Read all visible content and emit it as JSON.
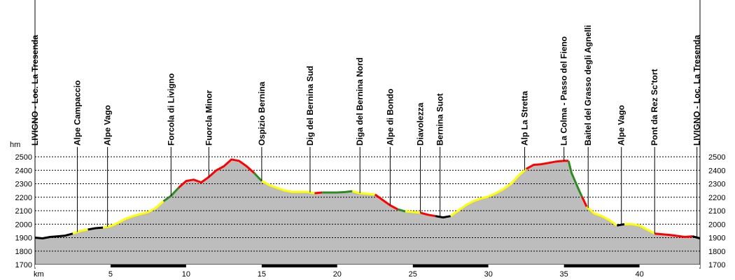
{
  "chart_data": {
    "type": "area",
    "title": "",
    "xlabel": "km",
    "ylabel": "hm",
    "xlim": [
      0,
      44
    ],
    "ylim": [
      1700,
      2500
    ],
    "x_ticks": [
      5,
      10,
      15,
      20,
      25,
      30,
      35,
      40
    ],
    "y_ticks": [
      1700,
      1800,
      1900,
      2000,
      2100,
      2200,
      2300,
      2400,
      2500
    ],
    "grid": true,
    "fill_color": "#bdbdbd",
    "profile": [
      [
        0,
        1900
      ],
      [
        0.5,
        1895
      ],
      [
        1.0,
        1905
      ],
      [
        1.5,
        1910
      ],
      [
        2.0,
        1915
      ],
      [
        2.5,
        1930
      ],
      [
        3.0,
        1950
      ],
      [
        3.5,
        1960
      ],
      [
        4.0,
        1970
      ],
      [
        4.5,
        1975
      ],
      [
        5.0,
        1985
      ],
      [
        5.5,
        2010
      ],
      [
        6.0,
        2040
      ],
      [
        6.5,
        2060
      ],
      [
        7.0,
        2075
      ],
      [
        7.5,
        2090
      ],
      [
        8.0,
        2120
      ],
      [
        8.5,
        2170
      ],
      [
        9.0,
        2210
      ],
      [
        9.5,
        2270
      ],
      [
        10.0,
        2320
      ],
      [
        10.5,
        2330
      ],
      [
        11.0,
        2310
      ],
      [
        11.5,
        2350
      ],
      [
        12.0,
        2400
      ],
      [
        12.5,
        2430
      ],
      [
        13.0,
        2480
      ],
      [
        13.5,
        2470
      ],
      [
        14.0,
        2430
      ],
      [
        14.5,
        2380
      ],
      [
        15.0,
        2320
      ],
      [
        15.5,
        2290
      ],
      [
        16.0,
        2270
      ],
      [
        16.5,
        2250
      ],
      [
        17.0,
        2240
      ],
      [
        18.0,
        2240
      ],
      [
        18.5,
        2230
      ],
      [
        19.0,
        2235
      ],
      [
        20.0,
        2235
      ],
      [
        20.5,
        2238
      ],
      [
        21.0,
        2245
      ],
      [
        21.5,
        2230
      ],
      [
        22.0,
        2225
      ],
      [
        22.5,
        2220
      ],
      [
        23.0,
        2180
      ],
      [
        23.5,
        2140
      ],
      [
        24.0,
        2110
      ],
      [
        24.5,
        2095
      ],
      [
        25.0,
        2090
      ],
      [
        25.5,
        2085
      ],
      [
        26.0,
        2070
      ],
      [
        26.5,
        2060
      ],
      [
        27.0,
        2050
      ],
      [
        27.5,
        2060
      ],
      [
        28.0,
        2100
      ],
      [
        28.5,
        2140
      ],
      [
        29.0,
        2170
      ],
      [
        29.5,
        2190
      ],
      [
        30.0,
        2205
      ],
      [
        30.5,
        2230
      ],
      [
        31.0,
        2260
      ],
      [
        31.5,
        2300
      ],
      [
        32.0,
        2360
      ],
      [
        32.5,
        2410
      ],
      [
        33.0,
        2440
      ],
      [
        33.5,
        2445
      ],
      [
        34.0,
        2455
      ],
      [
        34.5,
        2465
      ],
      [
        35.0,
        2470
      ],
      [
        35.3,
        2470
      ],
      [
        35.5,
        2380
      ],
      [
        36.0,
        2250
      ],
      [
        36.5,
        2130
      ],
      [
        37.0,
        2080
      ],
      [
        37.5,
        2060
      ],
      [
        38.0,
        2030
      ],
      [
        38.5,
        1990
      ],
      [
        39.0,
        2000
      ],
      [
        39.5,
        2000
      ],
      [
        40.0,
        1990
      ],
      [
        40.5,
        1960
      ],
      [
        41.0,
        1930
      ],
      [
        42.0,
        1920
      ],
      [
        43.0,
        1905
      ],
      [
        43.5,
        1910
      ],
      [
        44.0,
        1895
      ]
    ],
    "gradient_segments": [
      {
        "from": 0,
        "to": 2.5,
        "color": "#000000"
      },
      {
        "from": 2.5,
        "to": 3.5,
        "color": "#ffff00"
      },
      {
        "from": 3.5,
        "to": 4.5,
        "color": "#000000"
      },
      {
        "from": 4.5,
        "to": 8.5,
        "color": "#ffff00"
      },
      {
        "from": 8.5,
        "to": 9.5,
        "color": "#2e8b22"
      },
      {
        "from": 9.5,
        "to": 14.5,
        "color": "#ff0000"
      },
      {
        "from": 14.5,
        "to": 15.0,
        "color": "#2e8b22"
      },
      {
        "from": 15.0,
        "to": 18.5,
        "color": "#ffff00"
      },
      {
        "from": 18.5,
        "to": 19.0,
        "color": "#ff0000"
      },
      {
        "from": 19.0,
        "to": 21.0,
        "color": "#2e8b22"
      },
      {
        "from": 21.0,
        "to": 22.5,
        "color": "#ffff00"
      },
      {
        "from": 22.5,
        "to": 24.0,
        "color": "#ff0000"
      },
      {
        "from": 24.0,
        "to": 24.5,
        "color": "#2e8b22"
      },
      {
        "from": 24.5,
        "to": 25.5,
        "color": "#ffff00"
      },
      {
        "from": 25.5,
        "to": 26.5,
        "color": "#ff0000"
      },
      {
        "from": 26.5,
        "to": 27.5,
        "color": "#000000"
      },
      {
        "from": 27.5,
        "to": 32.5,
        "color": "#ffff00"
      },
      {
        "from": 32.5,
        "to": 35.3,
        "color": "#ff0000"
      },
      {
        "from": 35.3,
        "to": 36.2,
        "color": "#2e8b22"
      },
      {
        "from": 36.2,
        "to": 36.5,
        "color": "#ff0000"
      },
      {
        "from": 36.5,
        "to": 38.5,
        "color": "#ffff00"
      },
      {
        "from": 38.5,
        "to": 39.0,
        "color": "#000000"
      },
      {
        "from": 39.0,
        "to": 41.0,
        "color": "#ffff00"
      },
      {
        "from": 41.0,
        "to": 43.5,
        "color": "#ff0000"
      },
      {
        "from": 43.5,
        "to": 44.0,
        "color": "#000000"
      }
    ],
    "waypoints": [
      {
        "km": 0,
        "name": "LIVIGNO - Loc. La Tresenda"
      },
      {
        "km": 2.8,
        "name": "Alpe Campaccio"
      },
      {
        "km": 4.8,
        "name": "Alpe Vago"
      },
      {
        "km": 9.0,
        "name": "Forcola di Livigno"
      },
      {
        "km": 11.5,
        "name": "Fuorcla Minor"
      },
      {
        "km": 15.0,
        "name": "Ospizio Bernina"
      },
      {
        "km": 18.2,
        "name": "Dig del Bernina Sud"
      },
      {
        "km": 21.5,
        "name": "Diga del Bernina Nord"
      },
      {
        "km": 23.5,
        "name": "Alpe di Bondo"
      },
      {
        "km": 25.5,
        "name": "Diavolezza"
      },
      {
        "km": 26.8,
        "name": "Bernina Suot"
      },
      {
        "km": 32.4,
        "name": "Alp La Stretta"
      },
      {
        "km": 35.0,
        "name": "La Colma - Passo del Fieno"
      },
      {
        "km": 36.6,
        "name": "Baitel del Grasso degli Agnelli"
      },
      {
        "km": 38.8,
        "name": "Alpe Vago"
      },
      {
        "km": 41.0,
        "name": "Pont da Rez Sc'tort"
      },
      {
        "km": 43.8,
        "name": "LIVIGNO - Loc. La Tresenda"
      }
    ]
  }
}
